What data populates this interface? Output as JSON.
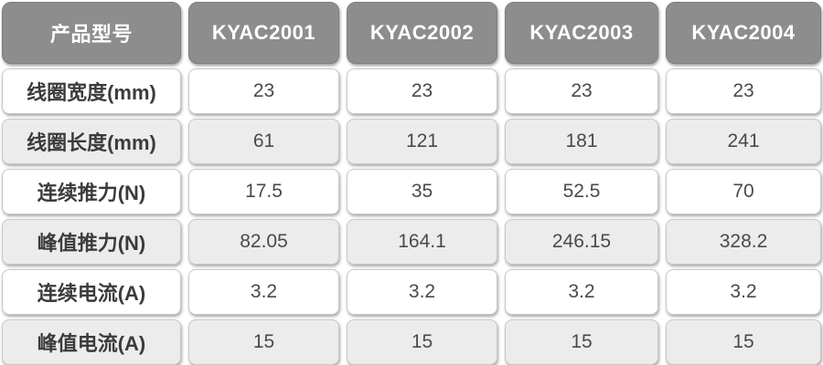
{
  "table": {
    "header": {
      "label": "产品型号",
      "columns": [
        "KYAC2001",
        "KYAC2002",
        "KYAC2003",
        "KYAC2004"
      ]
    },
    "rows": [
      {
        "label": "线圈宽度(mm)",
        "values": [
          "23",
          "23",
          "23",
          "23"
        ]
      },
      {
        "label": "线圈长度(mm)",
        "values": [
          "61",
          "121",
          "181",
          "241"
        ]
      },
      {
        "label": "连续推力(N)",
        "values": [
          "17.5",
          "35",
          "52.5",
          "70"
        ]
      },
      {
        "label": "峰值推力(N)",
        "values": [
          "82.05",
          "164.1",
          "246.15",
          "328.2"
        ]
      },
      {
        "label": "连续电流(A)",
        "values": [
          "3.2",
          "3.2",
          "3.2",
          "3.2"
        ]
      },
      {
        "label": "峰值电流(A)",
        "values": [
          "15",
          "15",
          "15",
          "15"
        ]
      }
    ],
    "colors": {
      "header_bg": "#8d8d8d",
      "header_text": "#ffffff",
      "row_bg": "#ffffff",
      "row_alt_bg": "#ececec",
      "cell_border": "#c8c8c8",
      "label_text": "#3b3b3b",
      "value_text": "#4a4a4a"
    }
  },
  "chart_data": {
    "type": "table",
    "title": "",
    "columns": [
      "产品型号",
      "KYAC2001",
      "KYAC2002",
      "KYAC2003",
      "KYAC2004"
    ],
    "rows": [
      [
        "线圈宽度(mm)",
        23,
        23,
        23,
        23
      ],
      [
        "线圈长度(mm)",
        61,
        121,
        181,
        241
      ],
      [
        "连续推力(N)",
        17.5,
        35,
        52.5,
        70
      ],
      [
        "峰值推力(N)",
        82.05,
        164.1,
        246.15,
        328.2
      ],
      [
        "连续电流(A)",
        3.2,
        3.2,
        3.2,
        3.2
      ],
      [
        "峰值电流(A)",
        15,
        15,
        15,
        15
      ]
    ]
  }
}
